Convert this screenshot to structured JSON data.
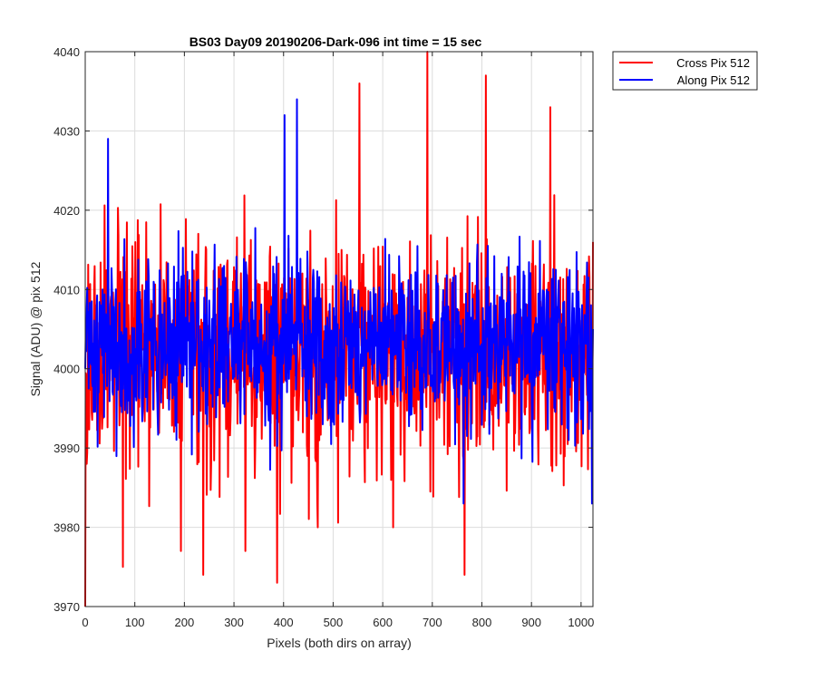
{
  "chart_data": {
    "type": "line",
    "title": "BS03 Day09 20190206-Dark-096 int time = 15 sec",
    "xlabel": "Pixels (both dirs on array)",
    "ylabel": "Signal (ADU) @ pix 512",
    "xlim": [
      0,
      1024
    ],
    "ylim": [
      3970,
      4040
    ],
    "xticks": [
      0,
      100,
      200,
      300,
      400,
      500,
      600,
      700,
      800,
      900,
      1000
    ],
    "yticks": [
      3970,
      3980,
      3990,
      4000,
      4010,
      4020,
      4030,
      4040
    ],
    "grid": true,
    "legend_position": "outside-top-right",
    "series": [
      {
        "name": "Cross Pix 512",
        "color": "#ff0000",
        "noise": {
          "mean": 4002,
          "sd": 7,
          "min": 3970,
          "max": 4040,
          "seed": 17
        },
        "points": [
          [
            0,
            3970
          ],
          [
            3,
            3988
          ],
          [
            76,
            3975
          ],
          [
            193,
            3977
          ],
          [
            238,
            3974
          ],
          [
            323,
            3977
          ],
          [
            387,
            3973
          ],
          [
            469,
            3980
          ],
          [
            553,
            4036
          ],
          [
            621,
            3980
          ],
          [
            690,
            4040
          ],
          [
            765,
            3974
          ],
          [
            808,
            4037
          ],
          [
            938,
            4033
          ],
          [
            1024,
            4016
          ]
        ]
      },
      {
        "name": "Along Pix 512",
        "color": "#0000ff",
        "noise": {
          "mean": 4003,
          "sd": 5.5,
          "min": 3980,
          "max": 4035,
          "seed": 41
        },
        "points": [
          [
            0,
            4000
          ],
          [
            46,
            4029
          ],
          [
            402,
            4032
          ],
          [
            427,
            4034
          ],
          [
            763,
            3983
          ],
          [
            1022,
            3983
          ],
          [
            1024,
            4005
          ]
        ]
      }
    ],
    "n_points": 1025
  }
}
